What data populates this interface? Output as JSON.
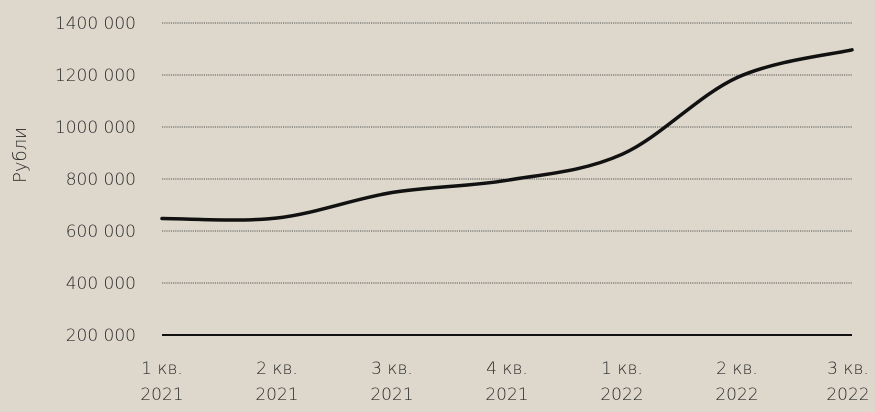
{
  "chart_data": {
    "type": "line",
    "title": "",
    "xlabel": "",
    "ylabel": "Рубли",
    "categories": [
      [
        "1 кв.",
        "2021"
      ],
      [
        "2 кв.",
        "2021"
      ],
      [
        "3 кв.",
        "2021"
      ],
      [
        "4 кв.",
        "2021"
      ],
      [
        "1 кв.",
        "2022"
      ],
      [
        "2 кв.",
        "2022"
      ],
      [
        "3 кв.",
        "2022"
      ]
    ],
    "values": [
      648000,
      650000,
      748000,
      795000,
      895000,
      1190000,
      1297000
    ],
    "ylim": [
      200000,
      1400000
    ],
    "yticks": [
      200000,
      400000,
      600000,
      800000,
      1000000,
      1200000,
      1400000
    ],
    "ytick_labels": [
      "200 000",
      "400 000",
      "600 000",
      "800 000",
      "1000 000",
      "1200 000",
      "1400 000"
    ],
    "grid": true,
    "legend": "none",
    "colors": {
      "background": "#ddd8cb",
      "line": "#111111",
      "grid": "#555555",
      "axis": "#111111",
      "text": "#2b2b2b"
    }
  }
}
